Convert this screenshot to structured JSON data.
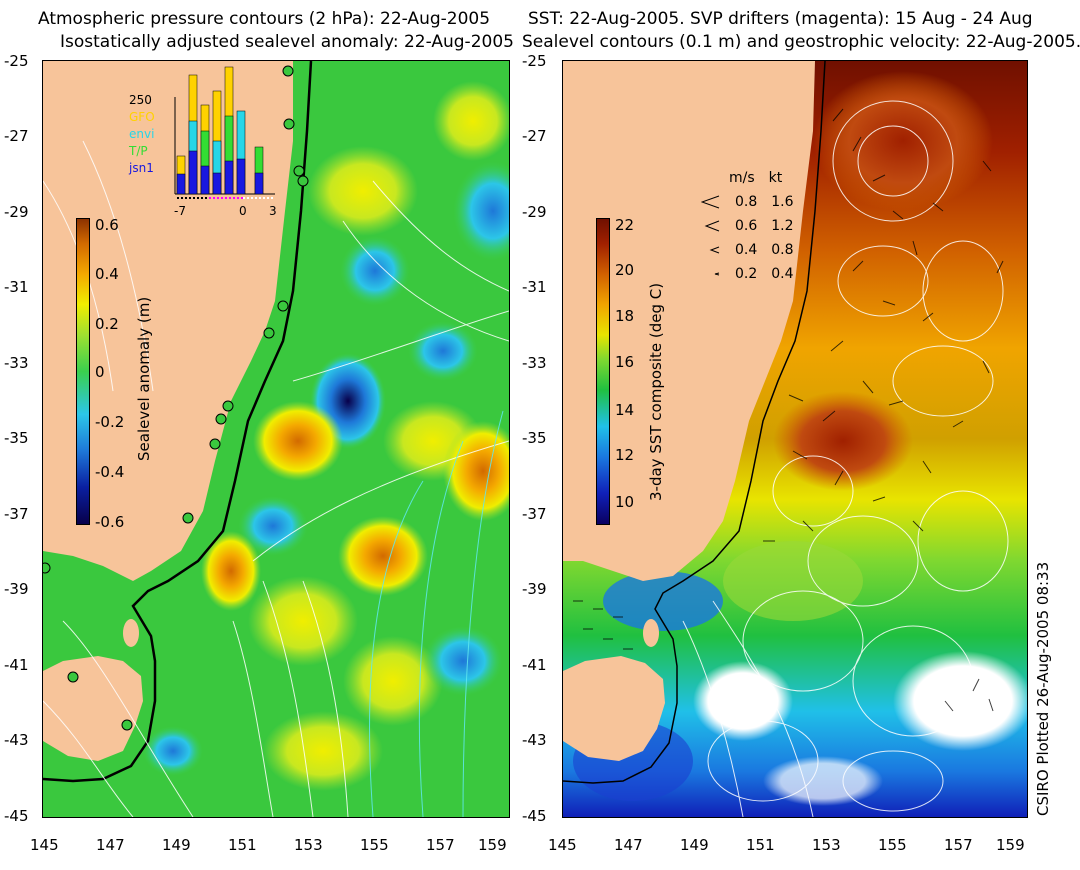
{
  "left_panel": {
    "title_line1": "Atmospheric pressure contours (2 hPa): 22-Aug-2005",
    "title_line2": "Isostatically adjusted sealevel anomaly: 22-Aug-2005",
    "colorbar": {
      "label": "Sealevel anomaly (m)",
      "ticks": [
        "0.6",
        "0.4",
        "0.2",
        "0",
        "-0.2",
        "-0.4",
        "-0.6"
      ],
      "colors": [
        "#08004a",
        "#0a1fa0",
        "#1e78d8",
        "#2cc6e8",
        "#3ad04e",
        "#9fe030",
        "#f0ee00",
        "#f4a800",
        "#d26a00",
        "#8c3200"
      ]
    },
    "inset": {
      "count_label": "250",
      "legend": [
        {
          "name": "GFO",
          "color": "#ffd200"
        },
        {
          "name": "envi",
          "color": "#27d6e8"
        },
        {
          "name": "T/P",
          "color": "#33dd33"
        },
        {
          "name": "jsn1",
          "color": "#1818e0"
        }
      ],
      "x_ticks": [
        "-7",
        "0",
        "3"
      ]
    }
  },
  "right_panel": {
    "title_line1": "SST: 22-Aug-2005. SVP drifters (magenta): 15 Aug - 24 Aug",
    "title_line2": "Sealevel contours (0.1 m) and geostrophic velocity: 22-Aug-2005.",
    "colorbar": {
      "label": "3-day SST composite (deg C)",
      "ticks": [
        "22",
        "20",
        "18",
        "16",
        "14",
        "12",
        "10"
      ],
      "colors": [
        "#0a0060",
        "#1020b8",
        "#1a78e0",
        "#20c0e8",
        "#20c040",
        "#80d830",
        "#e8e400",
        "#f0a400",
        "#d06000",
        "#a02000",
        "#701000"
      ]
    },
    "velocity_legend": {
      "header_ms": "m/s",
      "header_kt": "kt",
      "rows": [
        {
          "ms": "0.8",
          "kt": "1.6"
        },
        {
          "ms": "0.6",
          "kt": "1.2"
        },
        {
          "ms": "0.4",
          "kt": "0.8"
        },
        {
          "ms": "0.2",
          "kt": "0.4"
        }
      ]
    }
  },
  "axes": {
    "y_ticks": [
      "-25",
      "-27",
      "-29",
      "-31",
      "-33",
      "-35",
      "-37",
      "-39",
      "-41",
      "-43",
      "-45"
    ],
    "x_ticks": [
      "145",
      "147",
      "149",
      "151",
      "153",
      "155",
      "157",
      "159"
    ]
  },
  "credit": "CSIRO Plotted 26-Aug-2005 08:33",
  "colors": {
    "land": "#f7c49a",
    "ocean_sla": "#3ac83e",
    "ocean_sst_warm": "#b84a10",
    "ocean_sst_cool": "#24b83a"
  }
}
